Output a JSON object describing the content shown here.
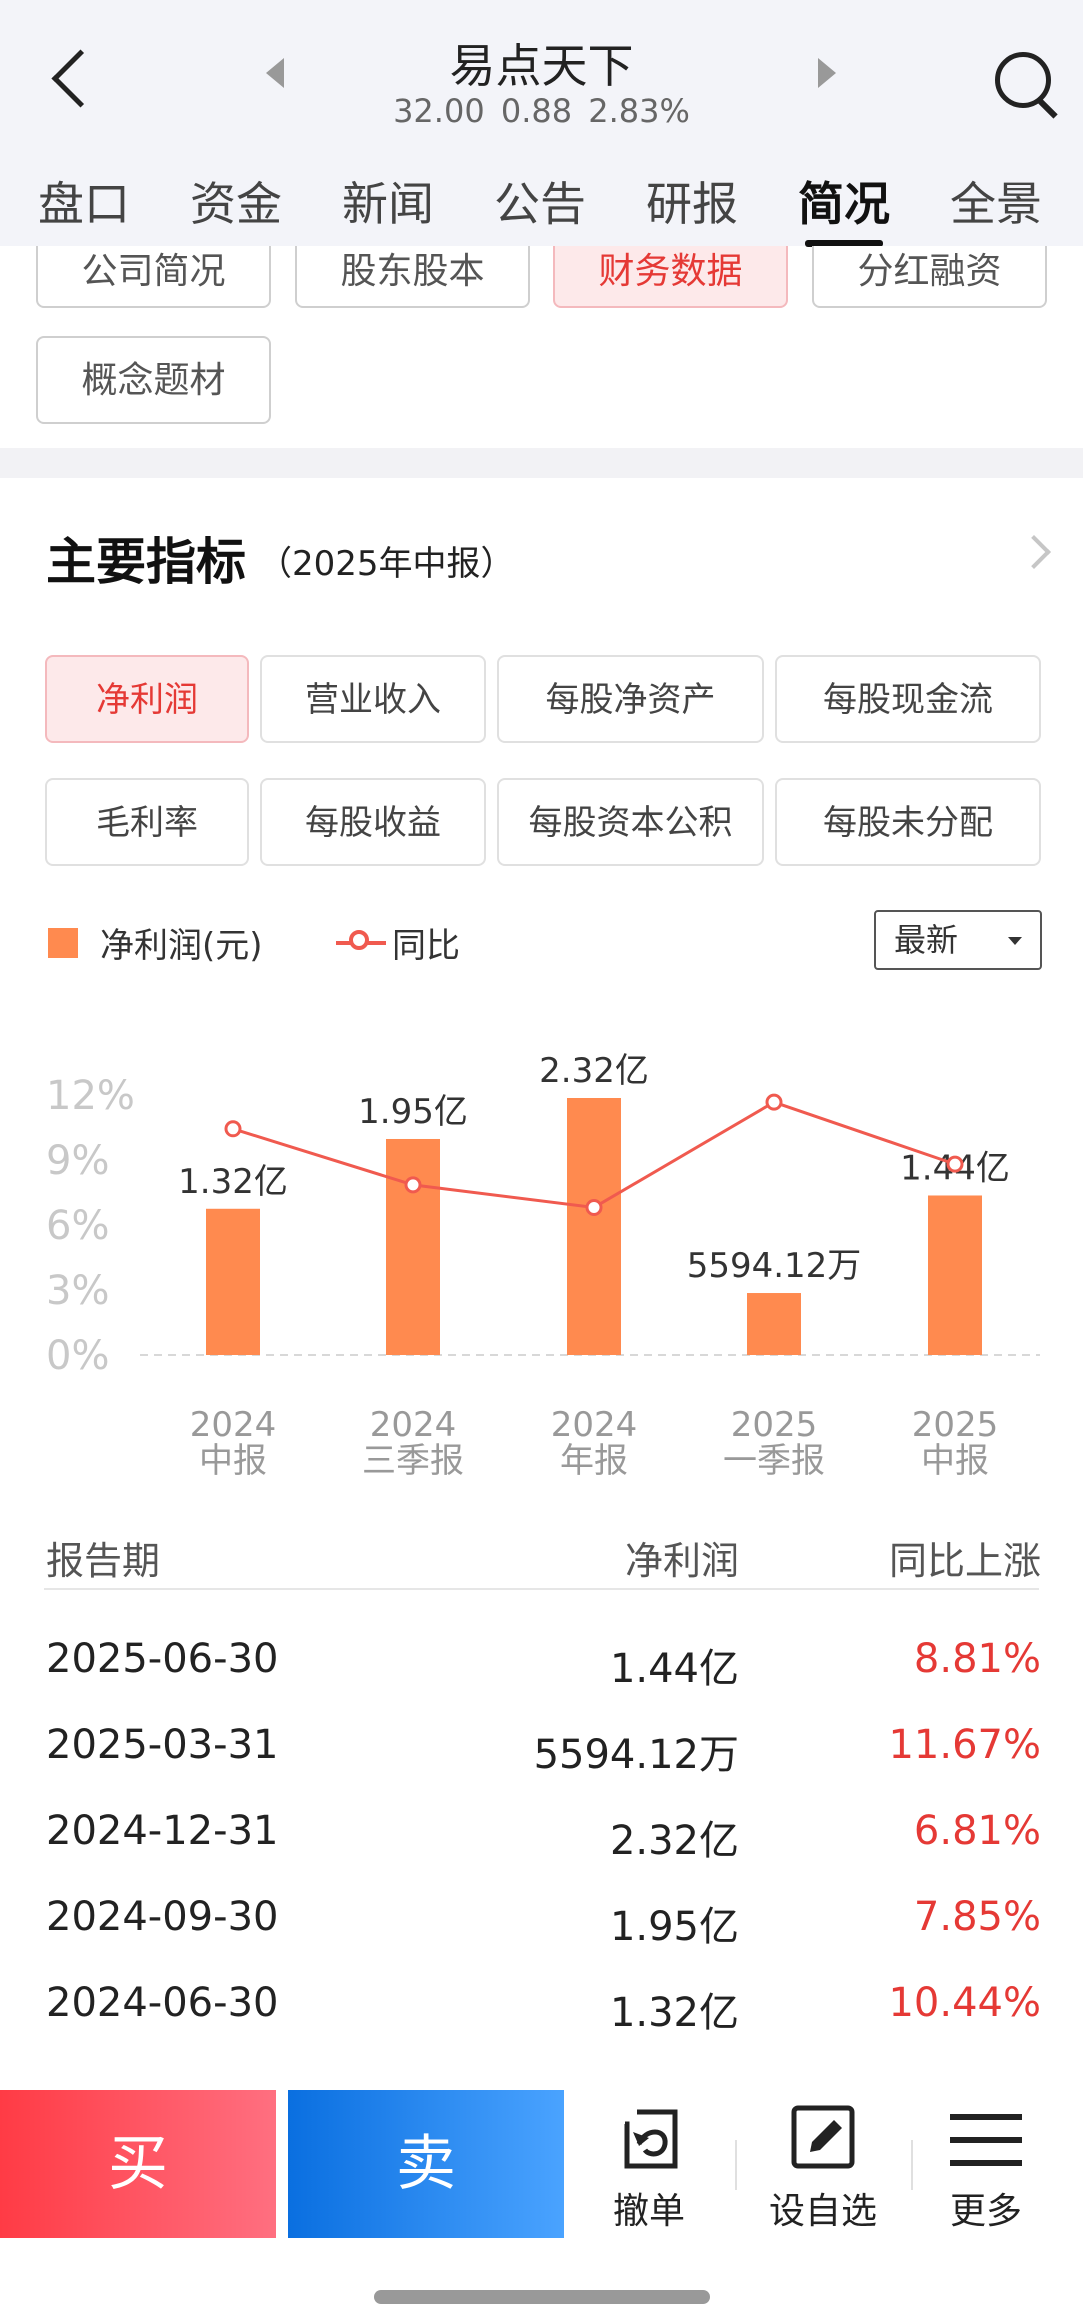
{
  "header": {
    "title": "易点天下",
    "price": "32.00",
    "change": "0.88",
    "change_pct": "2.83%"
  },
  "tabs": [
    "盘口",
    "资金",
    "新闻",
    "公告",
    "研报",
    "简况",
    "全景"
  ],
  "active_tab": "简况",
  "sub_tabs": [
    "公司简况",
    "股东股本",
    "财务数据",
    "分红融资",
    "概念题材"
  ],
  "active_sub_tab": "财务数据",
  "section": {
    "title": "主要指标",
    "subtitle": "（2025年中报）"
  },
  "indicators": [
    "净利润",
    "营业收入",
    "每股净资产",
    "每股现金流",
    "毛利率",
    "每股收益",
    "每股资本公积",
    "每股未分配"
  ],
  "active_indicator": "净利润",
  "legend": {
    "bar_label": "净利润(元)",
    "line_label": "同比"
  },
  "dropdown": {
    "value": "最新"
  },
  "chart_data": {
    "type": "bar",
    "categories": [
      [
        "2024",
        "中报"
      ],
      [
        "2024",
        "三季报"
      ],
      [
        "2024",
        "年报"
      ],
      [
        "2025",
        "一季报"
      ],
      [
        "2025",
        "中报"
      ]
    ],
    "series": [
      {
        "name": "净利润(元)",
        "type": "bar",
        "values_yi": [
          1.32,
          1.95,
          2.32,
          0.5594,
          1.44
        ],
        "labels": [
          "1.32亿",
          "1.95亿",
          "2.32亿",
          "5594.12万",
          "1.44亿"
        ],
        "color": "#ff8a4f"
      },
      {
        "name": "同比",
        "type": "line",
        "values": [
          10.44,
          7.85,
          6.81,
          11.67,
          8.81
        ],
        "unit": "%",
        "color": "#f05a4f"
      }
    ],
    "y_left": {
      "ticks": [
        "12%",
        "9%",
        "6%",
        "3%",
        "0%"
      ],
      "range": [
        0,
        12
      ]
    },
    "bar_range_yi": [
      0,
      2.32
    ]
  },
  "table": {
    "headers": [
      "报告期",
      "净利润",
      "同比上涨"
    ],
    "rows": [
      [
        "2025-06-30",
        "1.44亿",
        "8.81%"
      ],
      [
        "2025-03-31",
        "5594.12万",
        "11.67%"
      ],
      [
        "2024-12-31",
        "2.32亿",
        "6.81%"
      ],
      [
        "2024-09-30",
        "1.95亿",
        "7.85%"
      ],
      [
        "2024-06-30",
        "1.32亿",
        "10.44%"
      ]
    ]
  },
  "bottom_bar": {
    "buy": "买",
    "sell": "卖",
    "cancel": "撤单",
    "watchlist": "设自选",
    "more": "更多"
  },
  "colors": {
    "accent_red": "#e53935",
    "bar": "#ff8a4f",
    "line": "#f05a4f",
    "buy": "#ff3b45",
    "sell": "#0a6fe0"
  }
}
